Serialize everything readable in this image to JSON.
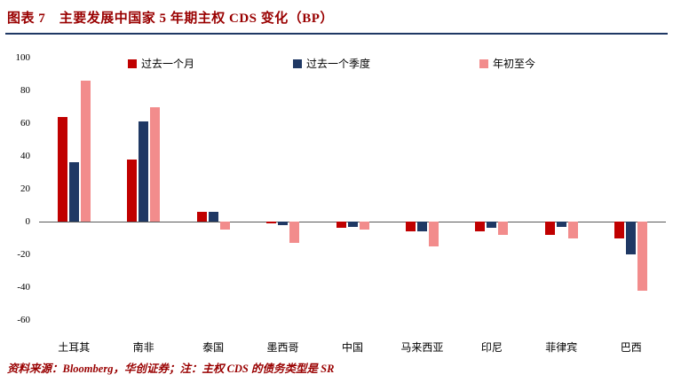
{
  "header": {
    "title": "图表 7　主要发展中国家 5 年期主权 CDS 变化（BP）"
  },
  "chart_data": {
    "type": "bar",
    "title": "主要发展中国家 5 年期主权 CDS 变化（BP）",
    "categories": [
      "土耳其",
      "南非",
      "泰国",
      "墨西哥",
      "中国",
      "马来西亚",
      "印尼",
      "菲律宾",
      "巴西"
    ],
    "series": [
      {
        "name": "过去一个月",
        "color": "#C00000",
        "values": [
          64,
          38,
          6,
          -1,
          -4,
          -6,
          -6,
          -8,
          -10
        ]
      },
      {
        "name": "过去一个季度",
        "color": "#1F3864",
        "values": [
          36,
          61,
          6,
          -2,
          -3,
          -6,
          -4,
          -3,
          -20
        ]
      },
      {
        "name": "年初至今",
        "color": "#F28C8C",
        "values": [
          86,
          70,
          -5,
          -13,
          -5,
          -15,
          -8,
          -10,
          -42
        ]
      }
    ],
    "ylim": [
      -60,
      100
    ],
    "yticks": [
      100,
      80,
      60,
      40,
      20,
      0,
      -20,
      -40,
      -60
    ],
    "xlabel": "",
    "ylabel": "",
    "grid": false,
    "legend_position": "top"
  },
  "footer": {
    "note": "资料来源：Bloomberg，华创证券；注：主权 CDS 的债务类型是 SR"
  }
}
